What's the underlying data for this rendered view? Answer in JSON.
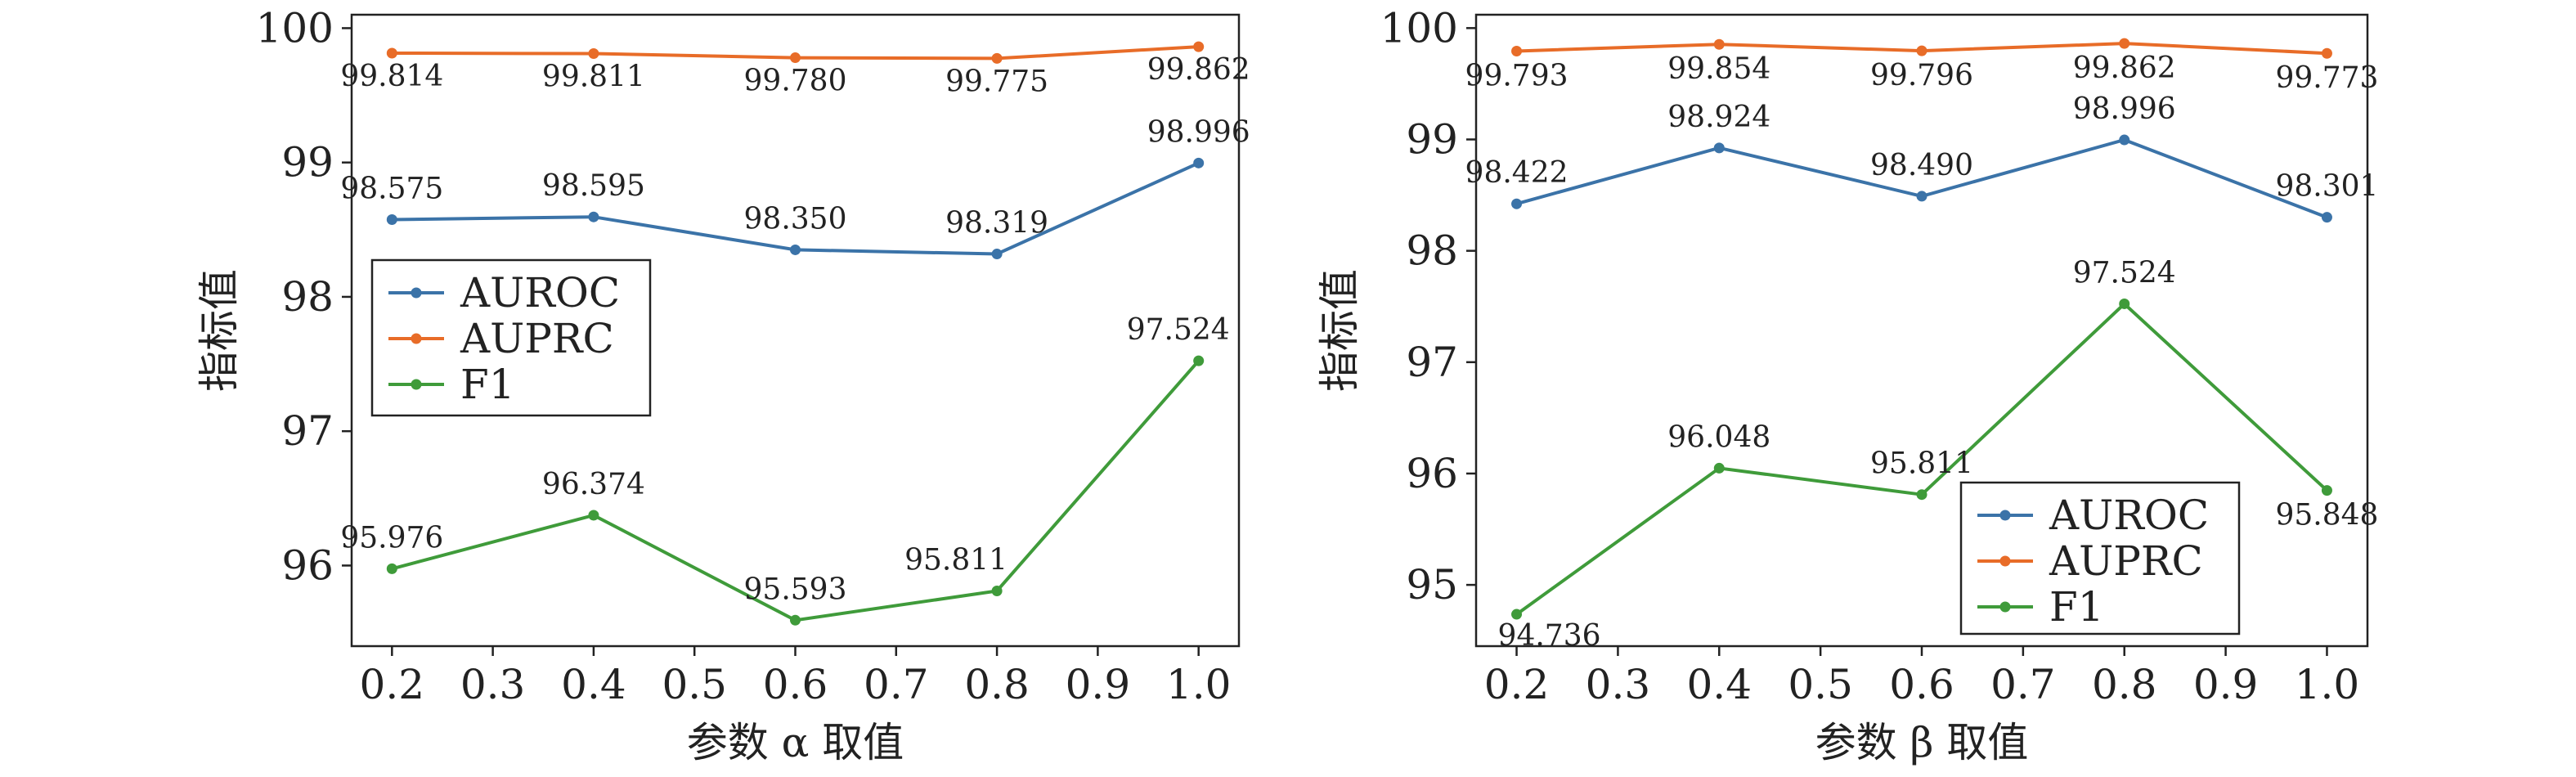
{
  "chart_data": [
    {
      "type": "line",
      "title": "",
      "xlabel": "参数 α 取值",
      "ylabel": "指标值",
      "x": [
        0.2,
        0.4,
        0.6,
        0.8,
        1.0
      ],
      "xticks": [
        "0.2",
        "0.3",
        "0.4",
        "0.5",
        "0.6",
        "0.7",
        "0.8",
        "0.9",
        "1.0"
      ],
      "yticks": [
        "96",
        "97",
        "98",
        "99",
        "100"
      ],
      "xlim": [
        0.16,
        1.04
      ],
      "ylim": [
        95.4,
        100.1
      ],
      "grid": false,
      "legend_position": "center-left",
      "series": [
        {
          "name": "AUROC",
          "color": "#3b73a8",
          "values": [
            98.575,
            98.595,
            98.35,
            98.319,
            98.996
          ],
          "labels": [
            "98.575",
            "98.595",
            "98.350",
            "98.319",
            "98.996"
          ]
        },
        {
          "name": "AUPRC",
          "color": "#e86c28",
          "values": [
            99.814,
            99.811,
            99.78,
            99.775,
            99.862
          ],
          "labels": [
            "99.814",
            "99.811",
            "99.780",
            "99.775",
            "99.862"
          ]
        },
        {
          "name": "F1",
          "color": "#3f9b3a",
          "values": [
            95.976,
            96.374,
            95.593,
            95.811,
            97.524
          ],
          "labels": [
            "95.976",
            "96.374",
            "95.593",
            "95.811",
            "97.524"
          ]
        }
      ]
    },
    {
      "type": "line",
      "title": "",
      "xlabel": "参数 β 取值",
      "ylabel": "指标值",
      "x": [
        0.2,
        0.4,
        0.6,
        0.8,
        1.0
      ],
      "xticks": [
        "0.2",
        "0.3",
        "0.4",
        "0.5",
        "0.6",
        "0.7",
        "0.8",
        "0.9",
        "1.0"
      ],
      "yticks": [
        "95",
        "96",
        "97",
        "98",
        "99",
        "100"
      ],
      "xlim": [
        0.16,
        1.04
      ],
      "ylim": [
        94.45,
        100.12
      ],
      "grid": false,
      "legend_position": "lower-right",
      "series": [
        {
          "name": "AUROC",
          "color": "#3b73a8",
          "values": [
            98.422,
            98.924,
            98.49,
            98.996,
            98.301
          ],
          "labels": [
            "98.422",
            "98.924",
            "98.490",
            "98.996",
            "98.301"
          ]
        },
        {
          "name": "AUPRC",
          "color": "#e86c28",
          "values": [
            99.793,
            99.854,
            99.796,
            99.862,
            99.773
          ],
          "labels": [
            "99.793",
            "99.854",
            "99.796",
            "99.862",
            "99.773"
          ]
        },
        {
          "name": "F1",
          "color": "#3f9b3a",
          "values": [
            94.736,
            96.048,
            95.811,
            97.524,
            95.848
          ],
          "labels": [
            "94.736",
            "96.048",
            "95.811",
            "97.524",
            "95.848"
          ]
        }
      ]
    }
  ]
}
